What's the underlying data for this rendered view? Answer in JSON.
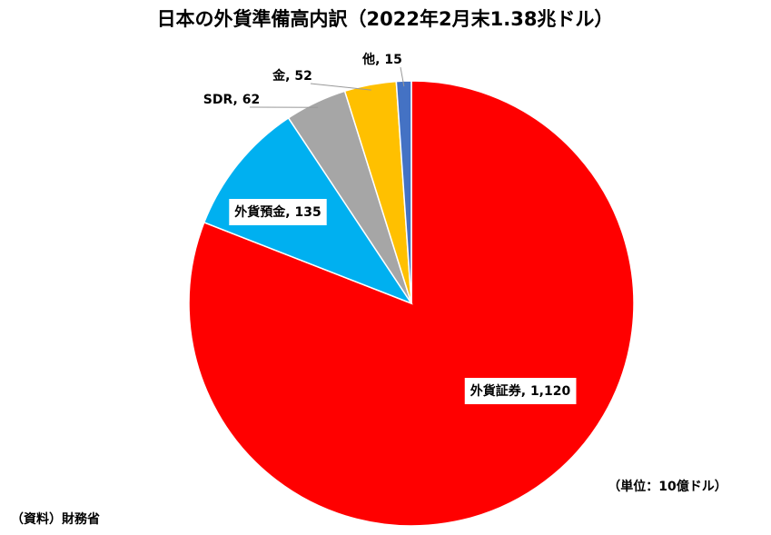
{
  "chart_data": {
    "type": "pie",
    "title": "日本の外貨準備高内訳（2022年2月末1.38兆ドル）",
    "values": [
      1120,
      135,
      62,
      52,
      15
    ],
    "value_labels": [
      "外貨証券, 1,120",
      "外貨預金, 135",
      "SDR, 62",
      "金, 52",
      "他, 15"
    ],
    "colors": [
      "#ff0000",
      "#00b0f0",
      "#a6a6a6",
      "#ffc000",
      "#4472c4"
    ],
    "unit_note": "（単位：10億ドル）",
    "source": "（資料）財務省"
  }
}
